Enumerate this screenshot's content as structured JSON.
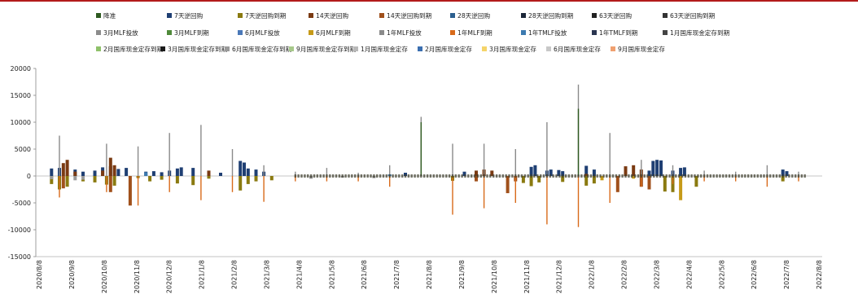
{
  "colors": {
    "top_rule": "#b31b1b",
    "zero_line": "#b0b0b0",
    "axis": "#888888"
  },
  "chart_data": {
    "type": "bar",
    "title": "",
    "xlabel": "",
    "ylabel": "",
    "ylim": [
      -15000,
      20000
    ],
    "yticks": [
      "20000",
      "15000",
      "10000",
      "5000",
      "0",
      "-5000",
      "-10000",
      "-15000"
    ],
    "xticks": [
      "2020/8/8",
      "2020/9/8",
      "2020/10/8",
      "2020/11/8",
      "2020/12/8",
      "2021/1/8",
      "2021/2/8",
      "2021/3/8",
      "2021/4/8",
      "2021/5/8",
      "2021/6/8",
      "2021/7/8",
      "2021/8/8",
      "2021/9/8",
      "2021/10/8",
      "2021/11/8",
      "2021/12/8",
      "2022/1/8",
      "2022/2/8",
      "2022/3/8",
      "2022/4/8",
      "2022/5/8",
      "2022/6/8",
      "2022/7/8",
      "2022/8/8"
    ],
    "legend": [
      {
        "name": "降准",
        "color": "#2e5a20"
      },
      {
        "name": "7天逆回购",
        "color": "#1f3f73"
      },
      {
        "name": "7天逆回购到期",
        "color": "#8a7a10"
      },
      {
        "name": "14天逆回购",
        "color": "#7a3a12"
      },
      {
        "name": "14天逆回购到期",
        "color": "#a0501b"
      },
      {
        "name": "28天逆回购",
        "color": "#2b5f8f"
      },
      {
        "name": "28天逆回购到期",
        "color": "#1b2638"
      },
      {
        "name": "63天逆回购",
        "color": "#222222"
      },
      {
        "name": "63天逆回购到期",
        "color": "#333333"
      },
      {
        "name": "3月MLF投放",
        "color": "#8c8c8c"
      },
      {
        "name": "3月MLF到期",
        "color": "#4f8a3a"
      },
      {
        "name": "6月MLF投放",
        "color": "#4a78b8"
      },
      {
        "name": "6月MLF到期",
        "color": "#c69a18"
      },
      {
        "name": "1年MLF投放",
        "color": "#8a8a8a"
      },
      {
        "name": "1年MLF到期",
        "color": "#d86a1a"
      },
      {
        "name": "1年TMLF投放",
        "color": "#3c7ab0"
      },
      {
        "name": "1年TMLF到期",
        "color": "#2a3550"
      },
      {
        "name": "1月国库现金定存到期",
        "color": "#444444"
      },
      {
        "name": "2月国库现金定存到期",
        "color": "#8fc16a"
      },
      {
        "name": "3月国库现金定存到期",
        "color": "#1a1a1a"
      },
      {
        "name": "6月国库现金定存到期",
        "color": "#9a9a9a"
      },
      {
        "name": "9月国库现金定存到期",
        "color": "#a7c98a"
      },
      {
        "name": "1月国库现金定存",
        "color": "#b8b8b8"
      },
      {
        "name": "2月国库现金定存",
        "color": "#3b6fb0"
      },
      {
        "name": "3月国库现金定存",
        "color": "#f5d46a"
      },
      {
        "name": "6月国库现金定存",
        "color": "#c8c8c8"
      },
      {
        "name": "9月国库现金定存",
        "color": "#f0a070"
      }
    ],
    "series": [
      {
        "name": "7天逆回购",
        "color": "#1f3f73",
        "points": [
          [
            0.02,
            1400
          ],
          [
            0.03,
            1500
          ],
          [
            0.05,
            1200
          ],
          [
            0.06,
            800
          ],
          [
            0.075,
            1000
          ],
          [
            0.085,
            1600
          ],
          [
            0.095,
            1800
          ],
          [
            0.105,
            1300
          ],
          [
            0.115,
            1500
          ],
          [
            0.14,
            800
          ],
          [
            0.15,
            900
          ],
          [
            0.16,
            700
          ],
          [
            0.17,
            1000
          ],
          [
            0.18,
            1400
          ],
          [
            0.185,
            1600
          ],
          [
            0.2,
            1500
          ],
          [
            0.22,
            400
          ],
          [
            0.235,
            600
          ],
          [
            0.26,
            2800
          ],
          [
            0.265,
            2500
          ],
          [
            0.27,
            1400
          ],
          [
            0.28,
            1200
          ],
          [
            0.29,
            800
          ],
          [
            0.47,
            600
          ],
          [
            0.545,
            800
          ],
          [
            0.57,
            400
          ],
          [
            0.63,
            1700
          ],
          [
            0.635,
            2000
          ],
          [
            0.65,
            1000
          ],
          [
            0.655,
            1200
          ],
          [
            0.665,
            1100
          ],
          [
            0.67,
            900
          ],
          [
            0.7,
            1900
          ],
          [
            0.71,
            1200
          ],
          [
            0.78,
            1000
          ],
          [
            0.785,
            2800
          ],
          [
            0.79,
            3000
          ],
          [
            0.795,
            2900
          ],
          [
            0.81,
            1000
          ],
          [
            0.82,
            1500
          ],
          [
            0.825,
            1600
          ],
          [
            0.95,
            1200
          ],
          [
            0.955,
            900
          ]
        ]
      },
      {
        "name": "7天逆回购到期",
        "color": "#8a7a10",
        "points": [
          [
            0.02,
            -1500
          ],
          [
            0.03,
            -2500
          ],
          [
            0.04,
            -2000
          ],
          [
            0.06,
            -1000
          ],
          [
            0.075,
            -1200
          ],
          [
            0.09,
            -1600
          ],
          [
            0.1,
            -1800
          ],
          [
            0.13,
            -400
          ],
          [
            0.145,
            -1000
          ],
          [
            0.16,
            -700
          ],
          [
            0.18,
            -1400
          ],
          [
            0.2,
            -1700
          ],
          [
            0.22,
            -500
          ],
          [
            0.26,
            -2700
          ],
          [
            0.27,
            -1500
          ],
          [
            0.28,
            -1000
          ],
          [
            0.3,
            -800
          ],
          [
            0.53,
            -900
          ],
          [
            0.56,
            -600
          ],
          [
            0.62,
            -1300
          ],
          [
            0.63,
            -1900
          ],
          [
            0.64,
            -1200
          ],
          [
            0.67,
            -1100
          ],
          [
            0.7,
            -1800
          ],
          [
            0.71,
            -1400
          ],
          [
            0.78,
            -1500
          ],
          [
            0.8,
            -2900
          ],
          [
            0.81,
            -3000
          ],
          [
            0.84,
            -2000
          ],
          [
            0.95,
            -1000
          ]
        ]
      },
      {
        "name": "14天逆回购",
        "color": "#7a3a12",
        "points": [
          [
            0.035,
            2400
          ],
          [
            0.04,
            3000
          ],
          [
            0.05,
            800
          ],
          [
            0.085,
            1000
          ],
          [
            0.095,
            3400
          ],
          [
            0.1,
            2000
          ],
          [
            0.22,
            1000
          ],
          [
            0.56,
            1000
          ],
          [
            0.57,
            1200
          ],
          [
            0.58,
            1000
          ],
          [
            0.7,
            400
          ],
          [
            0.75,
            1800
          ],
          [
            0.76,
            2000
          ],
          [
            0.77,
            1200
          ]
        ]
      },
      {
        "name": "14天逆回购到期",
        "color": "#a0501b",
        "points": [
          [
            0.035,
            -2300
          ],
          [
            0.095,
            -3000
          ],
          [
            0.12,
            -5500
          ],
          [
            0.56,
            -1000
          ],
          [
            0.6,
            -3200
          ],
          [
            0.61,
            -1000
          ],
          [
            0.74,
            -3000
          ],
          [
            0.77,
            -2000
          ],
          [
            0.78,
            -2500
          ]
        ]
      },
      {
        "name": "1年MLF投放",
        "color": "#8a8a8a",
        "points": [
          [
            0.03,
            7500
          ],
          [
            0.09,
            6000
          ],
          [
            0.13,
            5500
          ],
          [
            0.17,
            8000
          ],
          [
            0.21,
            9500
          ],
          [
            0.25,
            5000
          ],
          [
            0.29,
            2000
          ],
          [
            0.33,
            800
          ],
          [
            0.37,
            1500
          ],
          [
            0.41,
            600
          ],
          [
            0.45,
            2000
          ],
          [
            0.49,
            11000
          ],
          [
            0.53,
            6000
          ],
          [
            0.57,
            6000
          ],
          [
            0.61,
            5000
          ],
          [
            0.65,
            10000
          ],
          [
            0.69,
            17000
          ],
          [
            0.73,
            8000
          ],
          [
            0.77,
            3000
          ],
          [
            0.81,
            2000
          ],
          [
            0.85,
            1000
          ],
          [
            0.89,
            800
          ],
          [
            0.93,
            2000
          ],
          [
            0.97,
            800
          ]
        ]
      },
      {
        "name": "1年MLF到期",
        "color": "#d86a1a",
        "points": [
          [
            0.03,
            -4000
          ],
          [
            0.09,
            -3000
          ],
          [
            0.13,
            -5500
          ],
          [
            0.17,
            -3000
          ],
          [
            0.21,
            -4500
          ],
          [
            0.25,
            -3000
          ],
          [
            0.29,
            -4800
          ],
          [
            0.33,
            -1000
          ],
          [
            0.37,
            -1000
          ],
          [
            0.41,
            -1000
          ],
          [
            0.45,
            -2000
          ],
          [
            0.53,
            -7200
          ],
          [
            0.57,
            -6000
          ],
          [
            0.61,
            -5000
          ],
          [
            0.65,
            -9000
          ],
          [
            0.69,
            -9500
          ],
          [
            0.73,
            -5000
          ],
          [
            0.77,
            -2000
          ],
          [
            0.81,
            -1500
          ],
          [
            0.85,
            -1000
          ],
          [
            0.89,
            -1000
          ],
          [
            0.93,
            -2000
          ],
          [
            0.97,
            -1000
          ]
        ]
      },
      {
        "name": "降准",
        "color": "#2e5a20",
        "points": [
          [
            0.49,
            10000
          ],
          [
            0.69,
            12500
          ]
        ]
      },
      {
        "name": "1年TMLF投放",
        "color": "#3c7ab0",
        "points": [
          [
            0.14,
            700
          ],
          [
            0.45,
            300
          ]
        ]
      },
      {
        "name": "6月国库现金定存到期",
        "color": "#9a9a9a",
        "points": [
          [
            0.02,
            -600
          ],
          [
            0.05,
            -800
          ],
          [
            0.06,
            -700
          ]
        ]
      },
      {
        "name": "3月MLF投放",
        "color": "#8c8c8c",
        "points": [
          [
            0.35,
            -500
          ],
          [
            0.39,
            -300
          ],
          [
            0.43,
            -400
          ]
        ]
      },
      {
        "name": "6月MLF到期",
        "color": "#c69a18",
        "points": [
          [
            0.72,
            -800
          ],
          [
            0.76,
            -500
          ],
          [
            0.82,
            -4500
          ]
        ]
      }
    ]
  }
}
